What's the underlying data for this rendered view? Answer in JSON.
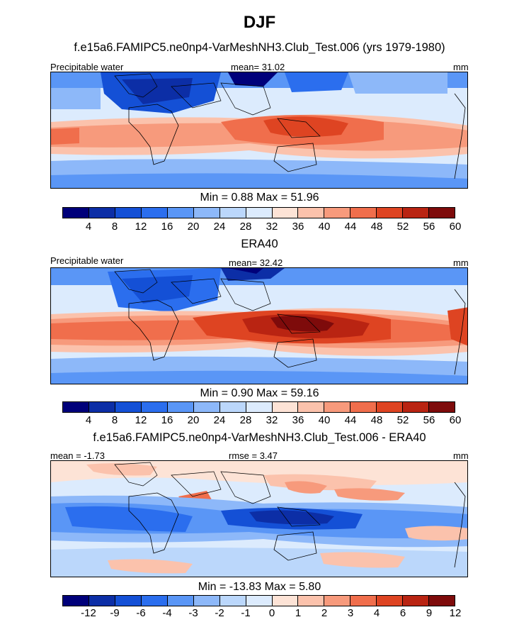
{
  "title": "DJF",
  "panels": [
    {
      "heading": "f.e15a6.FAMIPC5.ne0np4-VarMeshNH3.Club_Test.006 (yrs 1979-1980)",
      "left_label": "Precipitable water",
      "center_label": "mean=  31.02",
      "right_label": "mm",
      "minmax": "Min =   0.88 Max =  51.96",
      "colorbar_ticks": [
        "4",
        "8",
        "12",
        "16",
        "20",
        "24",
        "28",
        "32",
        "36",
        "40",
        "44",
        "48",
        "52",
        "56",
        "60"
      ]
    },
    {
      "heading": "ERA40",
      "left_label": "Precipitable water",
      "center_label": "mean=  32.42",
      "right_label": "mm",
      "minmax": "Min =   0.90 Max =  59.16",
      "colorbar_ticks": [
        "4",
        "8",
        "12",
        "16",
        "20",
        "24",
        "28",
        "32",
        "36",
        "40",
        "44",
        "48",
        "52",
        "56",
        "60"
      ]
    },
    {
      "heading": "f.e15a6.FAMIPC5.ne0np4-VarMeshNH3.Club_Test.006 - ERA40",
      "left_label": "mean =  -1.73",
      "center_label": "rmse =   3.47",
      "right_label": "mm",
      "minmax": "Min = -13.83 Max =   5.80",
      "colorbar_ticks": [
        "-12",
        "-9",
        "-6",
        "-4",
        "-3",
        "-2",
        "-1",
        "0",
        "1",
        "2",
        "3",
        "4",
        "6",
        "9",
        "12"
      ]
    }
  ],
  "colorbar_colors": [
    "#00007a",
    "#0c2ea6",
    "#1450d6",
    "#2b6eee",
    "#5a96f6",
    "#8db8f9",
    "#bbd7fb",
    "#dcebfd",
    "#fde3d6",
    "#fbc2ac",
    "#f79a7c",
    "#f06e4c",
    "#de4422",
    "#b92412",
    "#7e0b0b"
  ]
}
